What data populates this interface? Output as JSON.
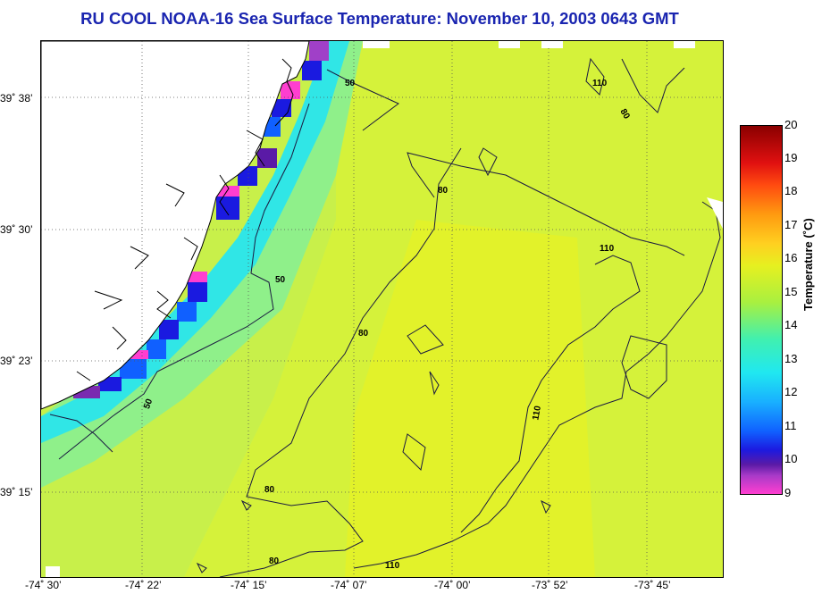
{
  "title": "RU COOL  NOAA-16  Sea Surface Temperature:  November 10, 2003 0643 GMT",
  "map": {
    "lat_labels": [
      "39˚ 38’",
      "39˚ 30’",
      "39˚ 23’",
      "39˚ 15’"
    ],
    "lon_labels": [
      "-74˚ 30’",
      "-74˚ 22’",
      "-74˚ 15’",
      "-74˚ 07’",
      "-74˚ 00’",
      "-73˚ 52’",
      "-73˚ 45’"
    ],
    "contour_labels": [
      "50",
      "50",
      "50",
      "80",
      "80",
      "80",
      "80",
      "110",
      "110",
      "110",
      "110",
      "80"
    ]
  },
  "colorbar": {
    "label": "Temperature (˚C)",
    "ticks": [
      "20",
      "19",
      "18",
      "17",
      "16",
      "15",
      "14",
      "13",
      "12",
      "11",
      "10",
      "9"
    ],
    "min": 9,
    "max": 20
  },
  "colors": {
    "title": "#1a25b0",
    "ocean_warm": "#e2f22a",
    "ocean_mid": "#bff045",
    "ocean_cool": "#7fe8a8",
    "coast_cold": "#20d8f8",
    "land": "#ffffff"
  }
}
